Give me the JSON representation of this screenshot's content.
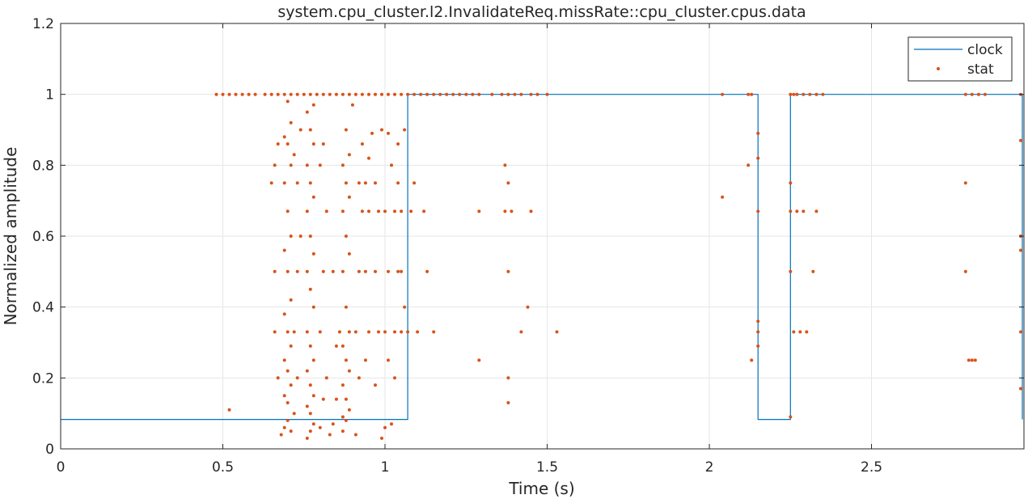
{
  "chart_data": {
    "type": "scatter",
    "title": "system.cpu_cluster.l2.InvalidateReq.missRate::cpu_cluster.cpus.data",
    "xlabel": "Time (s)",
    "ylabel": "Normalized amplitude",
    "xlim": [
      0,
      2.97
    ],
    "ylim": [
      0,
      1.2
    ],
    "xticks": [
      0,
      0.5,
      1,
      1.5,
      2,
      2.5
    ],
    "xtick_labels": [
      "0",
      "0.5",
      "1",
      "1.5",
      "2",
      "2.5"
    ],
    "yticks": [
      0,
      0.2,
      0.4,
      0.6,
      0.8,
      1,
      1.2
    ],
    "ytick_labels": [
      "0",
      "0.2",
      "0.4",
      "0.6",
      "0.8",
      "1",
      "1.2"
    ],
    "grid": true,
    "legend_position": "top-right",
    "colors": {
      "clock": "#0072BD",
      "stat": "#D95319",
      "grid": "#e6e6e6",
      "axis": "#262626"
    },
    "series": [
      {
        "name": "clock",
        "kind": "step-line",
        "x": [
          0,
          1.07,
          1.07,
          2.15,
          2.15,
          2.25,
          2.25,
          2.965,
          2.965
        ],
        "y": [
          0.083,
          0.083,
          1,
          1,
          0.083,
          0.083,
          1,
          1,
          0.083
        ]
      },
      {
        "name": "stat",
        "kind": "points",
        "points": [
          [
            0.52,
            0.11
          ],
          [
            0.68,
            0.04
          ],
          [
            0.69,
            0.06
          ],
          [
            0.7,
            0.08
          ],
          [
            0.71,
            0.05
          ],
          [
            0.72,
            0.1
          ],
          [
            0.7,
            0.13
          ],
          [
            0.69,
            0.15
          ],
          [
            0.71,
            0.18
          ],
          [
            0.7,
            0.22
          ],
          [
            0.69,
            0.25
          ],
          [
            0.71,
            0.29
          ],
          [
            0.7,
            0.33
          ],
          [
            0.69,
            0.38
          ],
          [
            0.71,
            0.42
          ],
          [
            0.7,
            0.5
          ],
          [
            0.69,
            0.56
          ],
          [
            0.71,
            0.6
          ],
          [
            0.7,
            0.67
          ],
          [
            0.69,
            0.75
          ],
          [
            0.71,
            0.8
          ],
          [
            0.7,
            0.86
          ],
          [
            0.69,
            0.88
          ],
          [
            0.71,
            0.92
          ],
          [
            0.7,
            0.98
          ],
          [
            0.67,
            0.2
          ],
          [
            0.66,
            0.33
          ],
          [
            0.66,
            0.5
          ],
          [
            0.65,
            0.75
          ],
          [
            0.66,
            0.8
          ],
          [
            0.67,
            0.86
          ],
          [
            0.73,
            0.2
          ],
          [
            0.72,
            0.33
          ],
          [
            0.73,
            0.5
          ],
          [
            0.74,
            0.6
          ],
          [
            0.73,
            0.75
          ],
          [
            0.72,
            0.83
          ],
          [
            0.74,
            0.9
          ],
          [
            0.76,
            0.03
          ],
          [
            0.77,
            0.05
          ],
          [
            0.78,
            0.07
          ],
          [
            0.77,
            0.1
          ],
          [
            0.76,
            0.12
          ],
          [
            0.78,
            0.15
          ],
          [
            0.77,
            0.18
          ],
          [
            0.76,
            0.22
          ],
          [
            0.78,
            0.25
          ],
          [
            0.77,
            0.29
          ],
          [
            0.76,
            0.33
          ],
          [
            0.78,
            0.4
          ],
          [
            0.77,
            0.45
          ],
          [
            0.76,
            0.5
          ],
          [
            0.78,
            0.55
          ],
          [
            0.77,
            0.6
          ],
          [
            0.76,
            0.67
          ],
          [
            0.78,
            0.71
          ],
          [
            0.77,
            0.75
          ],
          [
            0.76,
            0.8
          ],
          [
            0.78,
            0.86
          ],
          [
            0.77,
            0.9
          ],
          [
            0.76,
            0.95
          ],
          [
            0.78,
            0.97
          ],
          [
            0.8,
            0.06
          ],
          [
            0.81,
            0.14
          ],
          [
            0.82,
            0.2
          ],
          [
            0.8,
            0.33
          ],
          [
            0.81,
            0.5
          ],
          [
            0.82,
            0.67
          ],
          [
            0.8,
            0.8
          ],
          [
            0.81,
            0.86
          ],
          [
            0.83,
            0.04
          ],
          [
            0.84,
            0.07
          ],
          [
            0.85,
            0.29
          ],
          [
            0.86,
            0.33
          ],
          [
            0.84,
            0.5
          ],
          [
            0.87,
            0.09
          ],
          [
            0.85,
            0.14
          ],
          [
            0.87,
            0.05
          ],
          [
            0.88,
            0.08
          ],
          [
            0.89,
            0.11
          ],
          [
            0.88,
            0.14
          ],
          [
            0.87,
            0.18
          ],
          [
            0.89,
            0.22
          ],
          [
            0.88,
            0.25
          ],
          [
            0.87,
            0.29
          ],
          [
            0.89,
            0.33
          ],
          [
            0.88,
            0.4
          ],
          [
            0.87,
            0.5
          ],
          [
            0.89,
            0.55
          ],
          [
            0.88,
            0.6
          ],
          [
            0.87,
            0.67
          ],
          [
            0.89,
            0.71
          ],
          [
            0.88,
            0.75
          ],
          [
            0.87,
            0.8
          ],
          [
            0.89,
            0.83
          ],
          [
            0.88,
            0.9
          ],
          [
            0.9,
            0.97
          ],
          [
            0.91,
            0.04
          ],
          [
            0.92,
            0.2
          ],
          [
            0.91,
            0.33
          ],
          [
            0.92,
            0.5
          ],
          [
            0.93,
            0.67
          ],
          [
            0.92,
            0.75
          ],
          [
            0.93,
            0.86
          ],
          [
            0.94,
            0.25
          ],
          [
            0.95,
            0.33
          ],
          [
            0.94,
            0.5
          ],
          [
            0.95,
            0.67
          ],
          [
            0.94,
            0.75
          ],
          [
            0.96,
            0.89
          ],
          [
            0.95,
            0.82
          ],
          [
            0.97,
            0.18
          ],
          [
            0.98,
            0.33
          ],
          [
            0.97,
            0.5
          ],
          [
            0.98,
            0.67
          ],
          [
            0.97,
            0.75
          ],
          [
            0.99,
            0.9
          ],
          [
            0.99,
            0.03
          ],
          [
            1.0,
            0.06
          ],
          [
            1.01,
            0.25
          ],
          [
            1.0,
            0.33
          ],
          [
            1.01,
            0.5
          ],
          [
            1.0,
            0.67
          ],
          [
            1.02,
            0.8
          ],
          [
            1.01,
            0.89
          ],
          [
            1.02,
            0.07
          ],
          [
            1.03,
            0.2
          ],
          [
            1.03,
            0.33
          ],
          [
            1.04,
            0.5
          ],
          [
            1.03,
            0.67
          ],
          [
            1.04,
            0.75
          ],
          [
            1.04,
            0.86
          ],
          [
            1.05,
            0.33
          ],
          [
            1.05,
            0.5
          ],
          [
            1.05,
            0.67
          ],
          [
            1.06,
            0.9
          ],
          [
            1.06,
            0.4
          ],
          [
            1.07,
            0.33
          ],
          [
            1.08,
            0.67
          ],
          [
            1.09,
            0.75
          ],
          [
            1.1,
            0.33
          ],
          [
            1.12,
            0.67
          ],
          [
            1.13,
            0.5
          ],
          [
            1.15,
            0.33
          ],
          [
            1.29,
            0.25
          ],
          [
            1.29,
            0.67
          ],
          [
            1.37,
            0.67
          ],
          [
            1.37,
            0.8
          ],
          [
            1.38,
            0.75
          ],
          [
            1.38,
            0.5
          ],
          [
            1.39,
            0.67
          ],
          [
            1.38,
            0.2
          ],
          [
            1.38,
            0.13
          ],
          [
            1.42,
            0.33
          ],
          [
            1.44,
            0.4
          ],
          [
            1.45,
            0.67
          ],
          [
            1.53,
            0.33
          ],
          [
            2.04,
            0.71
          ],
          [
            2.12,
            0.8
          ],
          [
            2.13,
            0.25
          ],
          [
            2.15,
            0.89
          ],
          [
            2.15,
            0.82
          ],
          [
            2.15,
            0.67
          ],
          [
            2.15,
            0.36
          ],
          [
            2.15,
            0.33
          ],
          [
            2.15,
            0.29
          ],
          [
            2.25,
            0.09
          ],
          [
            2.25,
            0.5
          ],
          [
            2.25,
            0.67
          ],
          [
            2.25,
            0.75
          ],
          [
            2.26,
            0.33
          ],
          [
            2.27,
            0.67
          ],
          [
            2.28,
            0.33
          ],
          [
            2.29,
            0.67
          ],
          [
            2.3,
            0.33
          ],
          [
            2.32,
            0.5
          ],
          [
            2.33,
            0.67
          ],
          [
            2.79,
            0.75
          ],
          [
            2.79,
            0.5
          ],
          [
            2.8,
            0.25
          ],
          [
            2.81,
            0.25
          ],
          [
            2.82,
            0.25
          ],
          [
            2.96,
            0.87
          ],
          [
            2.96,
            0.6
          ],
          [
            2.96,
            0.56
          ],
          [
            2.96,
            0.33
          ],
          [
            2.96,
            0.17
          ],
          [
            0.48,
            1
          ],
          [
            0.5,
            1
          ],
          [
            0.52,
            1
          ],
          [
            0.54,
            1
          ],
          [
            0.56,
            1
          ],
          [
            0.58,
            1
          ],
          [
            0.6,
            1
          ],
          [
            0.63,
            1
          ],
          [
            0.65,
            1
          ],
          [
            0.67,
            1
          ],
          [
            0.69,
            1
          ],
          [
            0.71,
            1
          ],
          [
            0.73,
            1
          ],
          [
            0.75,
            1
          ],
          [
            0.77,
            1
          ],
          [
            0.79,
            1
          ],
          [
            0.81,
            1
          ],
          [
            0.83,
            1
          ],
          [
            0.85,
            1
          ],
          [
            0.87,
            1
          ],
          [
            0.89,
            1
          ],
          [
            0.91,
            1
          ],
          [
            0.93,
            1
          ],
          [
            0.95,
            1
          ],
          [
            0.97,
            1
          ],
          [
            0.99,
            1
          ],
          [
            1.01,
            1
          ],
          [
            1.03,
            1
          ],
          [
            1.05,
            1
          ],
          [
            1.07,
            1
          ],
          [
            1.09,
            1
          ],
          [
            1.11,
            1
          ],
          [
            1.13,
            1
          ],
          [
            1.15,
            1
          ],
          [
            1.17,
            1
          ],
          [
            1.19,
            1
          ],
          [
            1.21,
            1
          ],
          [
            1.23,
            1
          ],
          [
            1.25,
            1
          ],
          [
            1.27,
            1
          ],
          [
            1.29,
            1
          ],
          [
            1.33,
            1
          ],
          [
            1.36,
            1
          ],
          [
            1.38,
            1
          ],
          [
            1.4,
            1
          ],
          [
            1.42,
            1
          ],
          [
            1.45,
            1
          ],
          [
            1.47,
            1
          ],
          [
            1.5,
            1
          ],
          [
            2.04,
            1
          ],
          [
            2.12,
            1
          ],
          [
            2.13,
            1
          ],
          [
            2.25,
            1
          ],
          [
            2.26,
            1
          ],
          [
            2.27,
            1
          ],
          [
            2.29,
            1
          ],
          [
            2.31,
            1
          ],
          [
            2.33,
            1
          ],
          [
            2.35,
            1
          ],
          [
            2.79,
            1
          ],
          [
            2.81,
            1
          ],
          [
            2.83,
            1
          ],
          [
            2.85,
            1
          ],
          [
            2.96,
            1
          ]
        ]
      }
    ]
  }
}
